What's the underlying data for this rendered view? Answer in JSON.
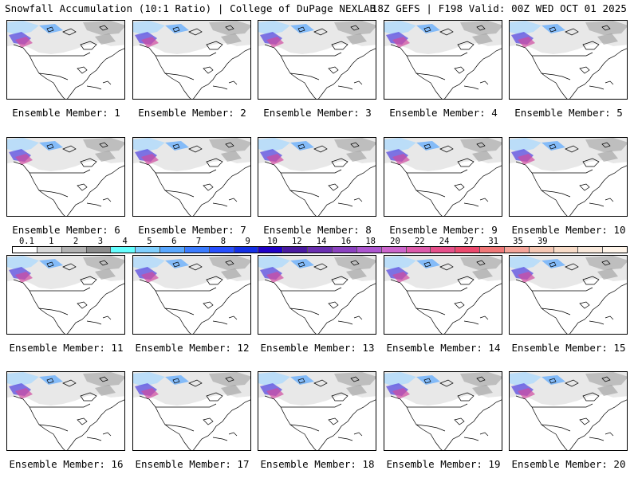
{
  "header": {
    "title_left": "Snowfall Accumulation (10:1 Ratio) | College of DuPage NEXLAB",
    "title_right": "18Z GEFS | F198 Valid: 00Z WED OCT 01 2025"
  },
  "colorbar": {
    "labels": [
      "0.1",
      "1",
      "2",
      "3",
      "4",
      "5",
      "6",
      "7",
      "8",
      "9",
      "10",
      "12",
      "14",
      "16",
      "18",
      "20",
      "22",
      "24",
      "27",
      "31",
      "35",
      "39"
    ],
    "colors": [
      "#ffffff",
      "#d9d9d9",
      "#b3b3b3",
      "#8c8c8c",
      "#66ffff",
      "#80d0ff",
      "#5aa8ff",
      "#3c7cff",
      "#2850ff",
      "#1430e6",
      "#2000c8",
      "#4a1aa0",
      "#6a2fb0",
      "#8c43c0",
      "#ad57d0",
      "#cc66cc",
      "#dd5aaa",
      "#e6508a",
      "#ec4a6e",
      "#f07878",
      "#f4a59a",
      "#f6c8b4",
      "#f8dcc8",
      "#faeadc",
      "#fff5ea"
    ]
  },
  "members": [
    {
      "label": "Ensemble Member: 1"
    },
    {
      "label": "Ensemble Member: 2"
    },
    {
      "label": "Ensemble Member: 3"
    },
    {
      "label": "Ensemble Member: 4"
    },
    {
      "label": "Ensemble Member: 5"
    },
    {
      "label": "Ensemble Member: 6"
    },
    {
      "label": "Ensemble Member: 7"
    },
    {
      "label": "Ensemble Member: 8"
    },
    {
      "label": "Ensemble Member: 9"
    },
    {
      "label": "Ensemble Member: 10"
    },
    {
      "label": "Ensemble Member: 11"
    },
    {
      "label": "Ensemble Member: 12"
    },
    {
      "label": "Ensemble Member: 13"
    },
    {
      "label": "Ensemble Member: 14"
    },
    {
      "label": "Ensemble Member: 15"
    },
    {
      "label": "Ensemble Member: 16"
    },
    {
      "label": "Ensemble Member: 17"
    },
    {
      "label": "Ensemble Member: 18"
    },
    {
      "label": "Ensemble Member: 19"
    },
    {
      "label": "Ensemble Member: 20"
    }
  ]
}
